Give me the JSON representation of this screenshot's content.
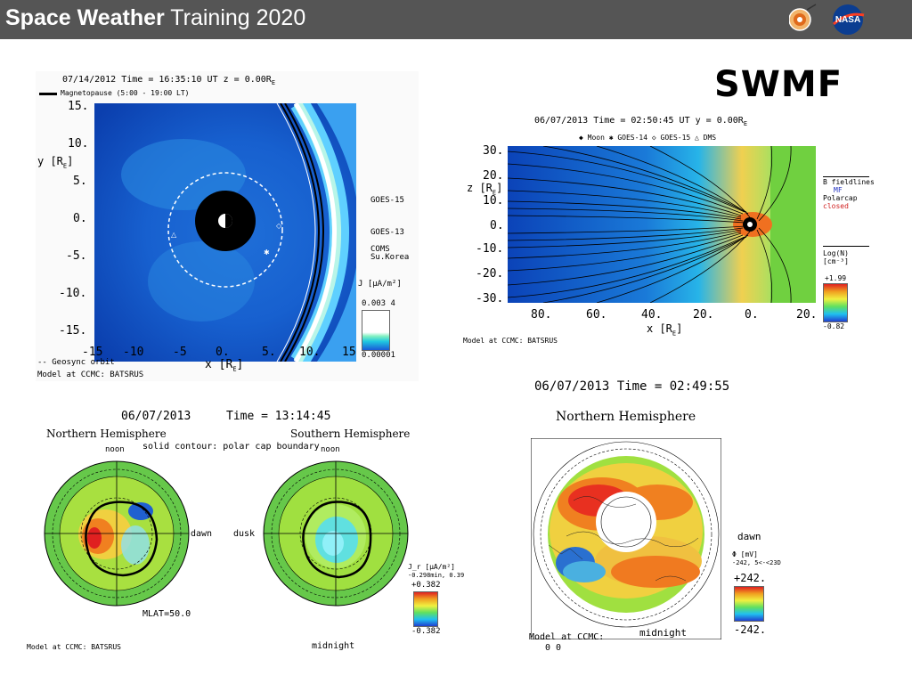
{
  "header": {
    "title_bold": "Space Weather",
    "title_rest": " Training 2020"
  },
  "logos": {
    "left": "ccmc-logo-icon",
    "right": "nasa-meatball-icon",
    "nasa_text": "NASA"
  },
  "slide": {
    "label": "SWMF"
  },
  "panel_tl": {
    "header": "07/14/2012 Time = 16:35:10 UT z = 0.00R",
    "header_sub": "E",
    "legend": "Magnetopause (5:00 - 19:00 LT)",
    "y_axis": "y [R",
    "y_sub": "E",
    "y_ticks": [
      "15.",
      "10.",
      "5.",
      "0.",
      "-5.",
      "-10.",
      "-15."
    ],
    "x_ticks": [
      "-15",
      "-10",
      "-5",
      "0.",
      "5.",
      "10.",
      "15"
    ],
    "x_axis": "x [R",
    "x_sub": "E",
    "markers": [
      "GOES-15",
      "GOES-13",
      "COMS Su.Korea"
    ],
    "cbar_label": "J [μA/m²]",
    "cbar_top": "0.003 4",
    "cbar_bottom": "0.00001",
    "footer_orbit": "-- Geosync orbit",
    "footer_model": "Model at CCMC: BATSRUS"
  },
  "panel_tr": {
    "header": "06/07/2013 Time = 02:50:45 UT y = 0.00R",
    "header_sub": "E",
    "legend": "◆ Moon   ✱ GOES-14   ◇ GOES-15   △ DMS",
    "y_axis": "z [R",
    "y_sub": "E",
    "y_ticks": [
      "30.",
      "20.",
      "10.",
      "0.",
      "-10.",
      "-20.",
      "-30."
    ],
    "x_ticks": [
      "80.",
      "60.",
      "40.",
      "20.",
      "0.",
      "20."
    ],
    "x_axis": "x [R",
    "x_sub": "E",
    "legend_right": [
      "B fieldlines",
      "MF",
      "Polarcap",
      "closed"
    ],
    "cbar_label": "Log(N) [cm⁻³]",
    "cbar_top": "+1.99",
    "cbar_bottom": "-0.82",
    "footer": "Model at CCMC: BATSRUS"
  },
  "panel_bl": {
    "date": "06/07/2013",
    "time": "Time = 13:14:45",
    "north": "Northern Hemisphere",
    "south": "Southern Hemisphere",
    "subtitle": "solid contour: polar cap boundary",
    "noon_left": "noon",
    "noon_right": "noon",
    "dawn": "dawn",
    "dusk": "dusk",
    "mlat": "MLAT=50.0",
    "midnight": "midnight",
    "cbar_label": "J_r [μA/m²]",
    "cbar_range": "-0.298min, 0.39",
    "cbar_top": "+0.382",
    "cbar_bottom": "-0.382",
    "footer": "Model at CCMC: BATSRUS"
  },
  "panel_br": {
    "time": "06/07/2013 Time = 02:49:55",
    "north": "Northern Hemisphere",
    "dawn": "dawn",
    "cbar_label": "Φ [mV]",
    "cbar_range": "-242, 5<-<23D",
    "cbar_top": "+242.",
    "cbar_bottom": "-242.",
    "midnight": "midnight",
    "footer_model": "Model at CCMC:",
    "footer_extra": "0 0"
  }
}
